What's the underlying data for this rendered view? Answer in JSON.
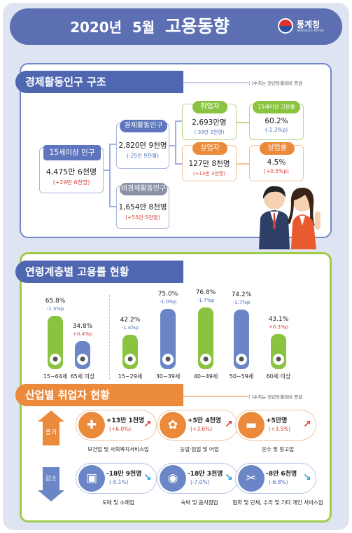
{
  "header": {
    "title_year": "2020년",
    "title_month": "5월",
    "title_main": "고용동향",
    "logo_text": "통계청",
    "logo_sub": "Statistics Korea"
  },
  "section1": {
    "title": "경제활동인구 구조",
    "note": "( )수치는 전년동월대비 증감",
    "pop15": {
      "label": "15세이상 인구",
      "value": "4,475만 6천명",
      "change": "(+29만 6천명)"
    },
    "econ_active": {
      "label": "경제활동인구",
      "value": "2,820만 9천명",
      "change": "(-25만 9천명)"
    },
    "non_active": {
      "label": "비경제활동인구",
      "value": "1,654만 8천명",
      "change": "(+55만 5천명)"
    },
    "employed": {
      "label": "취업자",
      "value": "2,693만명",
      "change": "(-39만 2천명)"
    },
    "emp_rate": {
      "label": "15세이상 고용률",
      "value": "60.2%",
      "change": "(-1.3%p)"
    },
    "unemployed": {
      "label": "실업자",
      "value": "127만 8천명",
      "change": "(+13만 3천명)"
    },
    "unemp_rate": {
      "label": "실업률",
      "value": "4.5%",
      "change": "(+0.5%p)"
    }
  },
  "section2": {
    "title": "연령계층별 고용률 현황",
    "bars": [
      {
        "label": "15~64세",
        "value": "65.8%",
        "change": "-1.3%p",
        "num": 65.8,
        "color": "green",
        "trend": "down"
      },
      {
        "label": "65세 이상",
        "value": "34.8%",
        "change": "+0.4%p",
        "num": 34.8,
        "color": "blue",
        "trend": "up"
      },
      {
        "label": "15~29세",
        "value": "42.2%",
        "change": "-1.4%p",
        "num": 42.2,
        "color": "green",
        "trend": "down"
      },
      {
        "label": "30~39세",
        "value": "75.0%",
        "change": "-1.0%p",
        "num": 75.0,
        "color": "blue",
        "trend": "down"
      },
      {
        "label": "40~49세",
        "value": "76.8%",
        "change": "-1.7%p",
        "num": 76.8,
        "color": "green",
        "trend": "down"
      },
      {
        "label": "50~59세",
        "value": "74.2%",
        "change": "-1.7%p",
        "num": 74.2,
        "color": "blue",
        "trend": "down"
      },
      {
        "label": "60세 이상",
        "value": "43.1%",
        "change": "+0.3%p",
        "num": 43.1,
        "color": "green",
        "trend": "up"
      }
    ]
  },
  "section3": {
    "title": "산업별 취업자 현황",
    "note": "( )수치는 전년동월대비 증감",
    "increase_label": "증가",
    "decrease_label": "감소",
    "increase": [
      {
        "name": "보건업 및 사회복지서비스업",
        "value": "+13만 1천명",
        "change": "(+6.0%)",
        "icon": "medical-kit-icon"
      },
      {
        "name": "농업·임업 및 어업",
        "value": "+5만 4천명",
        "change": "(+3.6%)",
        "icon": "wheat-icon"
      },
      {
        "name": "운수 및 창고업",
        "value": "+5만명",
        "change": "(+3.5%)",
        "icon": "truck-icon"
      }
    ],
    "decrease": [
      {
        "name": "도매 및 소매업",
        "value": "-18만 9천명",
        "change": "(-5.1%)",
        "icon": "shopping-basket-icon"
      },
      {
        "name": "숙박 및 음식점업",
        "value": "-18만 3천명",
        "change": "(-7.0%)",
        "icon": "dining-plate-icon"
      },
      {
        "name": "협회 및 단체, 수리 및 기타 개인 서비스업",
        "value": "-8만 6천명",
        "change": "(-6.8%)",
        "icon": "repair-tools-icon"
      }
    ]
  },
  "chart_data": {
    "type": "bar",
    "categories": [
      "15~64세",
      "65세 이상",
      "15~29세",
      "30~39세",
      "40~49세",
      "50~59세",
      "60세 이상"
    ],
    "values": [
      65.8,
      34.8,
      42.2,
      75.0,
      76.8,
      74.2,
      43.1
    ],
    "changes": [
      "-1.3%p",
      "+0.4%p",
      "-1.4%p",
      "-1.0%p",
      "-1.7%p",
      "-1.7%p",
      "+0.3%p"
    ],
    "title": "연령계층별 고용률 현황",
    "xlabel": "",
    "ylabel": ""
  }
}
